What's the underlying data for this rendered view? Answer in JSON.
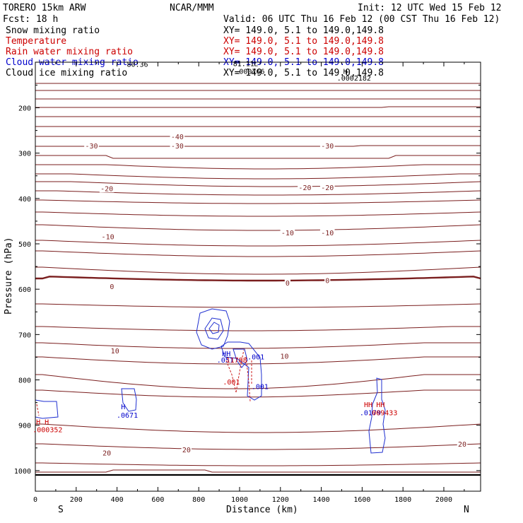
{
  "header": {
    "model": "TORERO  15km ARW",
    "center": "NCAR/MMM",
    "init": "Init: 12 UTC Wed 15 Feb 12",
    "fcst": "Fcst:   18 h",
    "valid": "Valid: 06 UTC Thu 16 Feb 12 (00 CST Thu 16 Feb 12)"
  },
  "legend": [
    {
      "name": "Snow mixing ratio",
      "xy": "XY= 149.0,  5.1 to 149.0,149.8",
      "color": "#000000"
    },
    {
      "name": "Temperature",
      "xy": "XY= 149.0,  5.1 to 149.0,149.8",
      "color": "#cc0000"
    },
    {
      "name": "Rain water mixing ratio",
      "xy": "XY= 149.0,  5.1 to 149.0,149.8",
      "color": "#cc0000"
    },
    {
      "name": "Cloud water mixing ratio",
      "xy": "XY= 149.0,  5.1 to 149.0,149.8",
      "color": "#0000cc"
    },
    {
      "name": "Cloud ice mixing ratio",
      "xy": "XY= 149.0,  5.1 to 149.0,149.8",
      "color": "#000000"
    }
  ],
  "chart_data": {
    "type": "cross-section contour",
    "xlabel": "Distance (km)",
    "ylabel": "Pressure (hPa)",
    "xlim": [
      0,
      2180
    ],
    "ylim": [
      1030,
      100
    ],
    "x_ticks": [
      0,
      200,
      400,
      600,
      800,
      1000,
      1200,
      1400,
      1600,
      1800,
      2000
    ],
    "y_ticks": [
      200,
      300,
      400,
      500,
      600,
      700,
      800,
      900,
      1000
    ],
    "x_end_labels": {
      "left": "S",
      "right": "N"
    },
    "temperature_labels": [
      {
        "text": "-40",
        "x": 695,
        "p": 268
      },
      {
        "text": "-30",
        "x": 275,
        "p": 288
      },
      {
        "text": "-30",
        "x": 695,
        "p": 288
      },
      {
        "text": "-30",
        "x": 1430,
        "p": 288
      },
      {
        "text": "-20",
        "x": 350,
        "p": 382
      },
      {
        "text": "-20",
        "x": 1320,
        "p": 380
      },
      {
        "text": "-20",
        "x": 1430,
        "p": 380
      },
      {
        "text": "-10",
        "x": 355,
        "p": 488
      },
      {
        "text": "-10",
        "x": 1235,
        "p": 480
      },
      {
        "text": "-10",
        "x": 1430,
        "p": 480
      },
      {
        "text": "0",
        "x": 375,
        "p": 598
      },
      {
        "text": "0",
        "x": 1235,
        "p": 590
      },
      {
        "text": "0",
        "x": 1430,
        "p": 585
      },
      {
        "text": "10",
        "x": 390,
        "p": 740
      },
      {
        "text": "10",
        "x": 1220,
        "p": 752
      },
      {
        "text": "20",
        "x": 350,
        "p": 965
      },
      {
        "text": "20",
        "x": 740,
        "p": 958
      },
      {
        "text": "20",
        "x": 2090,
        "p": 946
      }
    ],
    "isotherm_levels_C": [
      -60,
      -50,
      -40,
      -30,
      -20,
      -10,
      0,
      10,
      20
    ],
    "extremum_labels": [
      {
        "text": "80.36",
        "x": 500,
        "p": 110,
        "color": "#000000"
      },
      {
        "text": "81.11",
        "x": 1020,
        "p": 108,
        "color": "#000000"
      },
      {
        "text": ".000766",
        "x": 1050,
        "p": 125,
        "color": "#000000"
      },
      {
        "text": "L",
        "x": 1080,
        "p": 108,
        "color": "#000000"
      },
      {
        "text": "H",
        "x": 1518,
        "p": 125,
        "color": "#000000"
      },
      {
        "text": ".0002182",
        "x": 1560,
        "p": 140,
        "color": "#000000"
      },
      {
        "text": "H",
        "x": 430,
        "p": 865,
        "color": "#0000cc"
      },
      {
        "text": ".0671",
        "x": 450,
        "p": 883,
        "color": "#0000cc"
      },
      {
        "text": "HH",
        "x": 935,
        "p": 748,
        "color": "#0000cc"
      },
      {
        "text": ".051",
        "x": 930,
        "p": 762,
        "color": "#0000cc"
      },
      {
        "text": "11788",
        "x": 985,
        "p": 762,
        "color": "#cc0000"
      },
      {
        "text": ".001",
        "x": 1080,
        "p": 755,
        "color": "#0000cc"
      },
      {
        "text": ".001",
        "x": 960,
        "p": 810,
        "color": "#cc0000"
      },
      {
        "text": ".001",
        "x": 1100,
        "p": 820,
        "color": "#0000cc"
      },
      {
        "text": "H H",
        "x": 35,
        "p": 898,
        "color": "#cc0000"
      },
      {
        "text": ".000352",
        "x": 60,
        "p": 915,
        "color": "#cc0000"
      },
      {
        "text": "HH",
        "x": 1630,
        "p": 860,
        "color": "#cc0000"
      },
      {
        "text": ".0179",
        "x": 1640,
        "p": 878,
        "color": "#0000cc"
      },
      {
        "text": "HH",
        "x": 1690,
        "p": 860,
        "color": "#cc0000"
      },
      {
        "text": ".009433",
        "x": 1700,
        "p": 878,
        "color": "#cc0000"
      }
    ]
  }
}
